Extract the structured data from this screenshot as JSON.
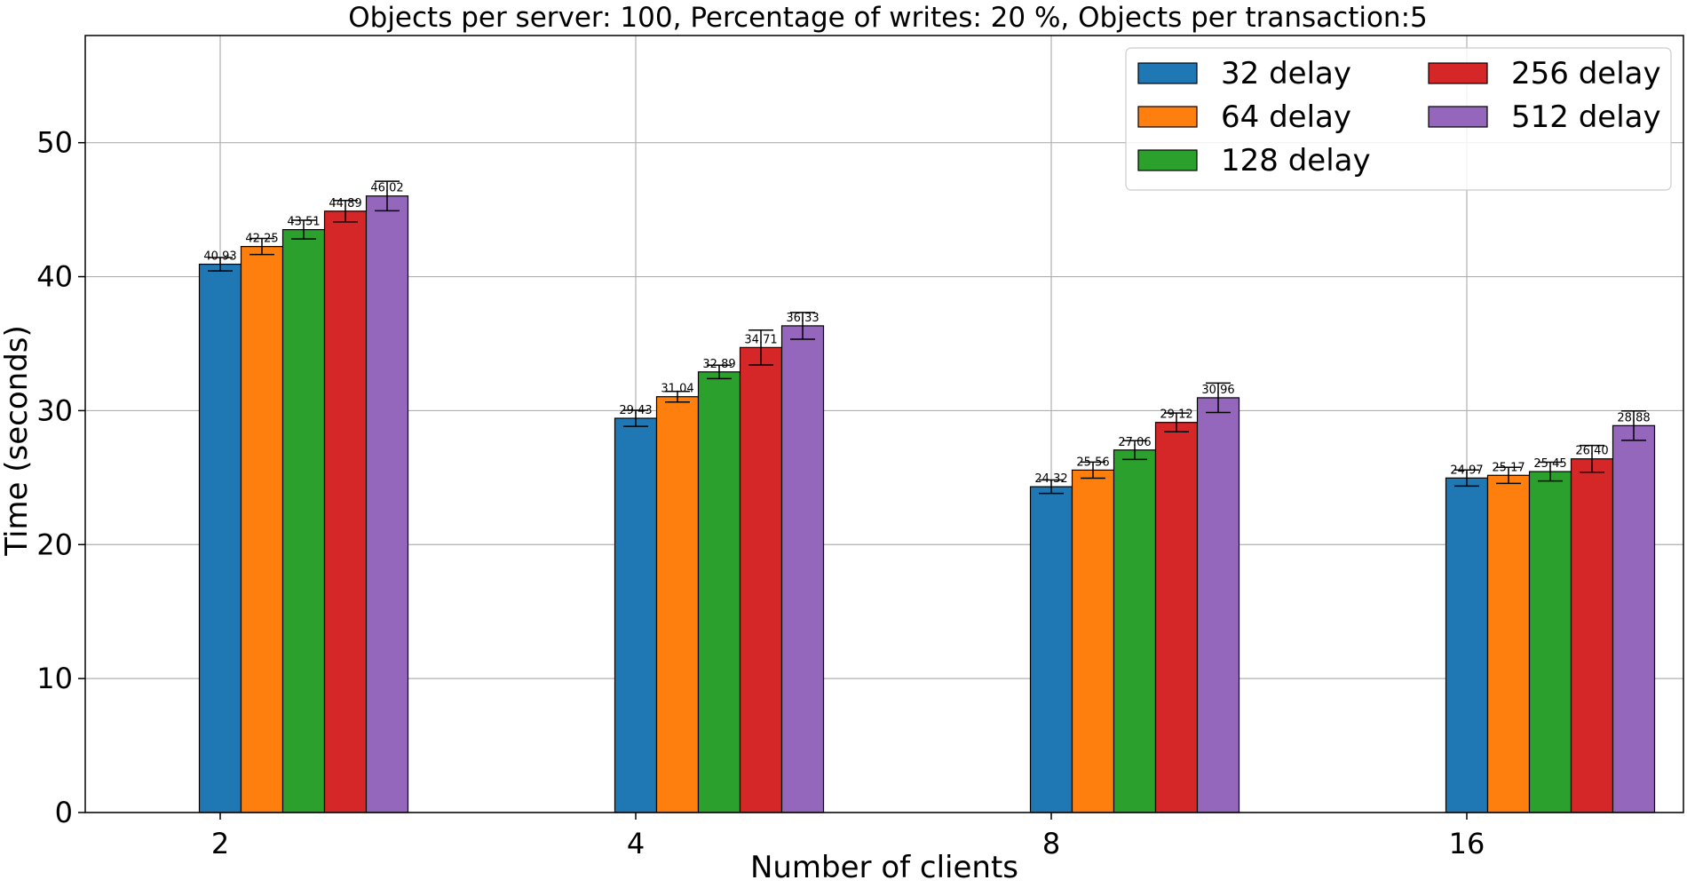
{
  "chart_data": {
    "type": "bar",
    "title": "Objects per server: 100, Percentage of writes: 20 %, Objects per transaction:5",
    "xlabel": "Number of clients",
    "ylabel": "Time (seconds)",
    "categories": [
      "2",
      "4",
      "8",
      "16"
    ],
    "ylim": [
      0,
      58
    ],
    "yticks": [
      0,
      10,
      20,
      30,
      40,
      50
    ],
    "grid": true,
    "legend_position": "top-right",
    "series": [
      {
        "name": "32 delay",
        "color": "#1f77b4",
        "values": [
          40.93,
          29.43,
          24.32,
          24.97
        ],
        "errors": [
          0.5,
          0.6,
          0.5,
          0.6
        ],
        "labels": [
          "40.93",
          "29.43",
          "24.32",
          "24.97"
        ]
      },
      {
        "name": "64 delay",
        "color": "#ff7f0e",
        "values": [
          42.25,
          31.04,
          25.56,
          25.17
        ],
        "errors": [
          0.6,
          0.4,
          0.6,
          0.6
        ],
        "labels": [
          "42.25",
          "31.04",
          "25.56",
          "25.17"
        ]
      },
      {
        "name": "128 delay",
        "color": "#2ca02c",
        "values": [
          43.51,
          32.89,
          27.06,
          25.45
        ],
        "errors": [
          0.7,
          0.5,
          0.7,
          0.7
        ],
        "labels": [
          "43.51",
          "32.89",
          "27.06",
          "25.45"
        ]
      },
      {
        "name": "256 delay",
        "color": "#d62728",
        "values": [
          44.89,
          34.71,
          29.12,
          26.4
        ],
        "errors": [
          0.8,
          1.3,
          0.7,
          1.0
        ],
        "labels": [
          "44.89",
          "34.71",
          "29.12",
          "26.40"
        ]
      },
      {
        "name": "512 delay",
        "color": "#9467bd",
        "values": [
          46.02,
          36.33,
          30.96,
          28.88
        ],
        "errors": [
          1.1,
          1.0,
          1.1,
          1.1
        ],
        "labels": [
          "46.02",
          "36.33",
          "30.96",
          "28.88"
        ]
      }
    ]
  }
}
